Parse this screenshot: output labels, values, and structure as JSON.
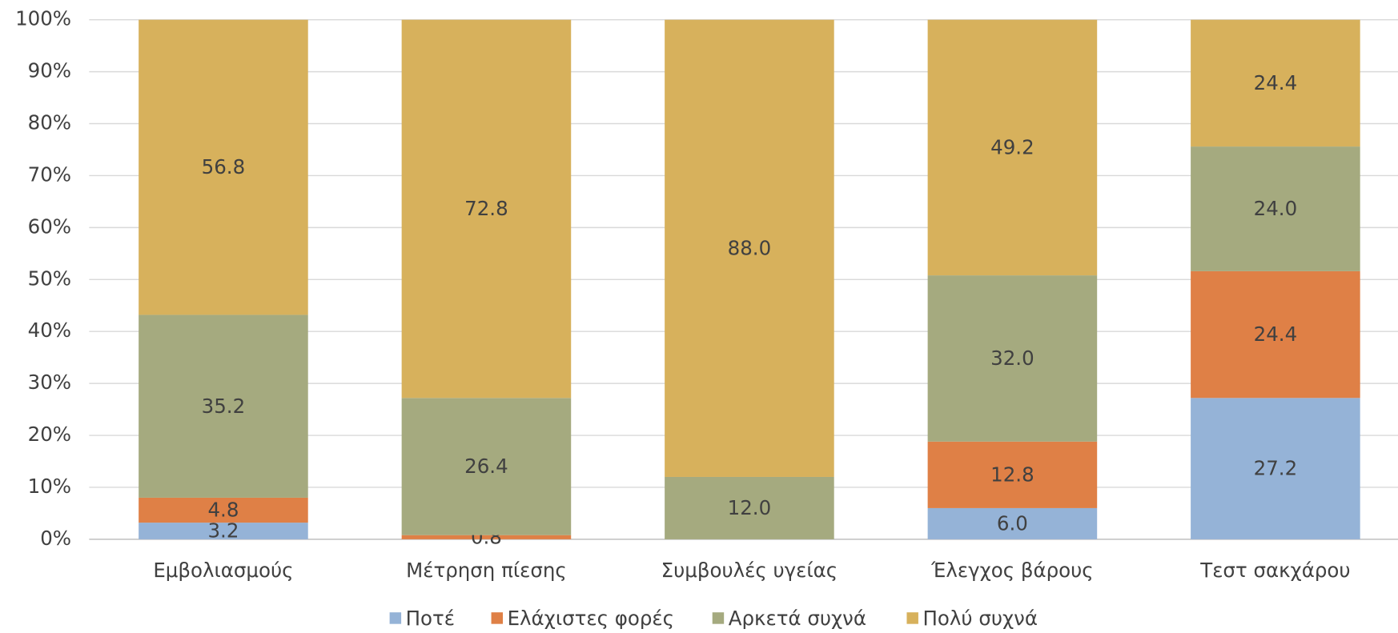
{
  "chart_data": {
    "type": "stacked_bar_percent",
    "categories": [
      "Εμβολιασμούς",
      "Μέτρηση πίεσης",
      "Συμβουλές υγείας",
      "Έλεγχος βάρους",
      "Τεστ σακχάρου"
    ],
    "series": [
      {
        "name": "Ποτέ",
        "color": "#95b3d7",
        "values": [
          3.2,
          null,
          null,
          6.0,
          27.2
        ],
        "value_labels": [
          "3.2",
          null,
          null,
          "6.0",
          "27.2"
        ]
      },
      {
        "name": "Ελάχιστες φορές",
        "color": "#df8046",
        "values": [
          4.8,
          0.8,
          null,
          12.8,
          24.4
        ],
        "value_labels": [
          "4.8",
          "0.8",
          null,
          "12.8",
          "24.4"
        ]
      },
      {
        "name": "Αρκετά συχνά",
        "color": "#a5aa7f",
        "values": [
          35.2,
          26.4,
          12.0,
          32.0,
          24.0
        ],
        "value_labels": [
          "35.2",
          "26.4",
          "12.0",
          "32.0",
          "24.0"
        ]
      },
      {
        "name": "Πολύ συχνά",
        "color": "#d7b15c",
        "values": [
          56.8,
          72.8,
          88.0,
          49.2,
          24.4
        ],
        "value_labels": [
          "56.8",
          "72.8",
          "88.0",
          "49.2",
          "24.4"
        ]
      }
    ],
    "ylim": [
      0,
      100
    ],
    "yticks": [
      {
        "value": 0,
        "label": "0%"
      },
      {
        "value": 10,
        "label": "10%"
      },
      {
        "value": 20,
        "label": "20%"
      },
      {
        "value": 30,
        "label": "30%"
      },
      {
        "value": 40,
        "label": "40%"
      },
      {
        "value": 50,
        "label": "50%"
      },
      {
        "value": 60,
        "label": "60%"
      },
      {
        "value": 70,
        "label": "70%"
      },
      {
        "value": 80,
        "label": "80%"
      },
      {
        "value": 90,
        "label": "90%"
      },
      {
        "value": 100,
        "label": "100%"
      }
    ],
    "grid": true,
    "legend": "bottom"
  }
}
